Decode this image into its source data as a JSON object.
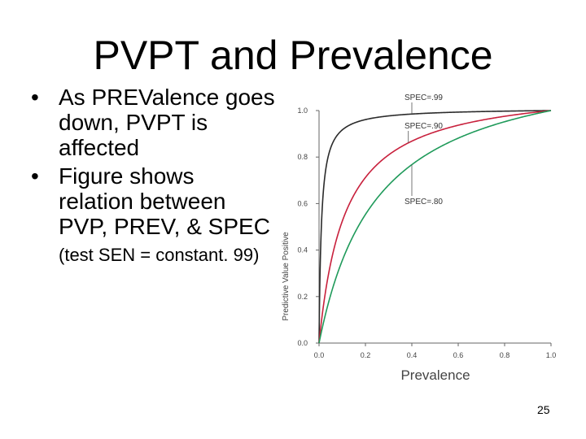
{
  "slide": {
    "title": "PVPT and Prevalence",
    "bullets": [
      {
        "text": "As PREValence goes down, PVPT is affected"
      },
      {
        "text_main": "Figure shows relation between PVP, PREV, & SPEC",
        "text_small": " (test SEN = constant. 99)"
      }
    ],
    "page_number": "25"
  },
  "chart_data": {
    "type": "line",
    "xlabel": "Prevalence",
    "ylabel": "Predictive Value Positive",
    "xlim": [
      0.0,
      1.0
    ],
    "ylim": [
      0.0,
      1.0
    ],
    "x_ticks": [
      "0.0",
      "0.2",
      "0.4",
      "0.6",
      "0.8",
      "1.0"
    ],
    "y_ticks": [
      "0.0",
      "0.2",
      "0.4",
      "0.6",
      "0.8",
      "1.0"
    ],
    "sensitivity": 0.99,
    "grid": false,
    "series": [
      {
        "name": "SPEC=.99",
        "specificity": 0.99,
        "color": "#2b2b2b",
        "x": [
          0.0,
          0.01,
          0.02,
          0.05,
          0.1,
          0.2,
          0.4,
          0.6,
          0.8,
          1.0
        ],
        "values": [
          0.0,
          0.5,
          0.67,
          0.84,
          0.92,
          0.96,
          0.99,
          0.99,
          1.0,
          1.0
        ]
      },
      {
        "name": "SPEC=.90",
        "specificity": 0.9,
        "color": "#c8203c",
        "x": [
          0.0,
          0.05,
          0.1,
          0.2,
          0.3,
          0.4,
          0.5,
          0.6,
          0.8,
          1.0
        ],
        "values": [
          0.0,
          0.34,
          0.52,
          0.71,
          0.81,
          0.87,
          0.91,
          0.94,
          0.98,
          1.0
        ]
      },
      {
        "name": "SPEC=.80",
        "specificity": 0.8,
        "color": "#1f9a5a",
        "x": [
          0.0,
          0.05,
          0.1,
          0.2,
          0.3,
          0.4,
          0.5,
          0.6,
          0.8,
          1.0
        ],
        "values": [
          0.0,
          0.21,
          0.35,
          0.55,
          0.68,
          0.77,
          0.83,
          0.88,
          0.95,
          1.0
        ]
      }
    ]
  }
}
